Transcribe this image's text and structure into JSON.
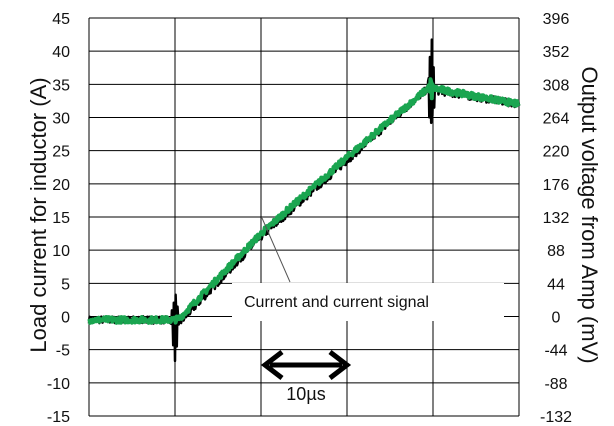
{
  "chart_data": {
    "type": "line",
    "ylabel": "Load current for inductor (A)",
    "y2label": "Output voltage from Amp (mV)",
    "ylim": [
      -15,
      45
    ],
    "y_ticks": [
      45,
      40,
      35,
      30,
      25,
      20,
      15,
      10,
      5,
      0,
      -5,
      -10,
      -15
    ],
    "y2lim": [
      -132,
      396
    ],
    "y2_ticks": [
      396,
      352,
      308,
      264,
      220,
      176,
      132,
      88,
      44,
      0,
      -44,
      -88,
      -132
    ],
    "x_units_per_division": "10µs",
    "x_divisions": 5,
    "grid": true,
    "series": [
      {
        "color": "#000000",
        "x": [
          0,
          1.0,
          1.05,
          2.0,
          3.0,
          3.95,
          4.05,
          5.0
        ],
        "values": [
          -0.5,
          -0.5,
          -1.0,
          12.0,
          23.5,
          34.5,
          34.0,
          32.0
        ]
      },
      {
        "color": "#1aa550",
        "x": [
          0,
          1.0,
          1.05,
          2.0,
          3.0,
          3.95,
          4.05,
          5.0
        ],
        "values": [
          -0.5,
          -0.5,
          -0.3,
          12.5,
          24.0,
          34.5,
          34.3,
          32.0
        ]
      }
    ],
    "annotations": {
      "signal_label": "Current and current signal",
      "scale_label": "10µs"
    }
  }
}
